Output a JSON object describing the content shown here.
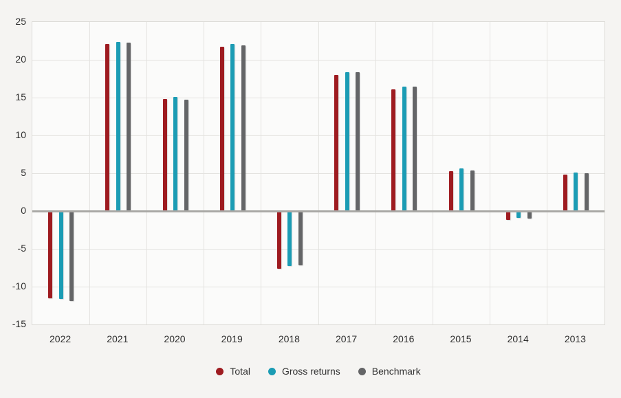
{
  "chart_data": {
    "type": "bar",
    "title": "",
    "categories": [
      "2022",
      "2021",
      "2020",
      "2019",
      "2018",
      "2017",
      "2016",
      "2015",
      "2014",
      "2013"
    ],
    "series": [
      {
        "name": "Total",
        "color": "#9e1b20",
        "values": [
          -11.5,
          22.1,
          14.8,
          21.7,
          -7.6,
          18.0,
          16.1,
          5.3,
          -1.2,
          4.8
        ]
      },
      {
        "name": "Gross returns",
        "color": "#1b9cb4",
        "values": [
          -11.6,
          22.4,
          15.1,
          22.1,
          -7.3,
          18.4,
          16.5,
          5.6,
          -0.9,
          5.1
        ]
      },
      {
        "name": "Benchmark",
        "color": "#646567",
        "values": [
          -11.9,
          22.3,
          14.7,
          21.9,
          -7.2,
          18.4,
          16.5,
          5.4,
          -1.0,
          5.0
        ]
      }
    ],
    "xlabel": "",
    "ylabel": "",
    "ylim": [
      -15,
      25
    ],
    "yticks": [
      25,
      20,
      15,
      10,
      5,
      0,
      -5,
      -10,
      -15
    ],
    "grid": true,
    "legend_position": "bottom"
  },
  "colors": {
    "page_background": "#f5f4f2",
    "plot_background": "#fbfbfa",
    "gridline": "#e3e2df",
    "zero_line": "#a9a8a5",
    "text": "#2d2d2d"
  }
}
